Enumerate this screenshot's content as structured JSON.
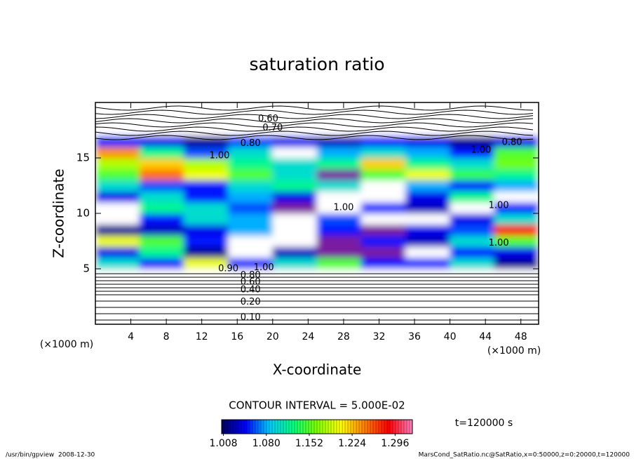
{
  "chart_data": {
    "type": "contour",
    "title": "saturation ratio",
    "xlabel": "X-coordinate",
    "ylabel": "Z-coordinate",
    "x_unit": "(×1000 m)",
    "y_unit": "(×1000 m)",
    "xlim": [
      0,
      50
    ],
    "ylim": [
      0,
      20
    ],
    "xticks": [
      4,
      8,
      12,
      16,
      20,
      24,
      28,
      32,
      36,
      40,
      44,
      48
    ],
    "yticks": [
      5,
      10,
      15
    ],
    "field": {
      "x_edges": [
        0,
        5,
        10,
        15,
        20,
        25,
        30,
        35,
        40,
        45,
        50
      ],
      "z_edges": [
        0,
        1,
        2,
        3,
        4,
        5,
        6,
        7,
        8,
        9,
        10,
        11,
        12,
        13,
        14,
        15,
        16,
        17,
        18,
        19,
        20
      ],
      "values": [
        [
          0.12,
          0.12,
          0.12,
          0.12,
          0.12,
          0.12,
          0.12,
          0.12,
          0.12,
          0.12
        ],
        [
          0.22,
          0.22,
          0.22,
          0.22,
          0.22,
          0.22,
          0.22,
          0.22,
          0.22,
          0.22
        ],
        [
          0.35,
          0.35,
          0.35,
          0.35,
          0.35,
          0.35,
          0.35,
          0.35,
          0.35,
          0.35
        ],
        [
          0.5,
          0.5,
          0.5,
          0.5,
          0.5,
          0.5,
          0.5,
          0.5,
          0.5,
          0.5
        ],
        [
          0.75,
          0.75,
          0.75,
          0.75,
          0.75,
          0.75,
          0.75,
          0.75,
          0.75,
          0.75
        ],
        [
          1.1,
          1.05,
          1.2,
          1.05,
          1.1,
          1.15,
          1.05,
          1.05,
          1.1,
          1.02
        ],
        [
          1.04,
          1.12,
          1.02,
          0.98,
          1.03,
          1.35,
          1.35,
          1.0,
          1.05,
          1.04
        ],
        [
          1.2,
          1.15,
          1.05,
          0.95,
          0.98,
          1.35,
          1.05,
          1.03,
          1.1,
          1.15
        ],
        [
          1.02,
          1.03,
          1.04,
          1.08,
          0.95,
          1.05,
          1.35,
          1.04,
          1.06,
          1.28
        ],
        [
          0.98,
          1.05,
          1.1,
          1.08,
          0.96,
          1.06,
          0.98,
          0.97,
          1.04,
          1.1
        ],
        [
          0.97,
          1.12,
          1.1,
          1.06,
          1.35,
          0.97,
          1.05,
          1.03,
          0.98,
          1.05
        ],
        [
          1.04,
          1.1,
          1.05,
          1.08,
          1.04,
          0.98,
          0.97,
          1.04,
          1.12,
          0.98
        ],
        [
          1.1,
          1.06,
          1.05,
          1.1,
          1.12,
          1.1,
          0.98,
          1.08,
          1.05,
          1.08
        ],
        [
          1.15,
          1.25,
          1.2,
          1.15,
          1.1,
          1.35,
          1.15,
          1.2,
          1.14,
          1.12
        ],
        [
          1.18,
          1.22,
          1.18,
          1.12,
          1.1,
          1.12,
          1.22,
          1.12,
          1.1,
          1.16
        ],
        [
          1.24,
          1.12,
          1.06,
          1.1,
          0.98,
          1.08,
          1.1,
          1.08,
          1.05,
          1.15
        ],
        [
          1.05,
          1.04,
          1.02,
          1.06,
          1.04,
          1.03,
          1.05,
          1.04,
          1.02,
          1.04
        ],
        [
          0.85,
          0.82,
          0.85,
          0.8,
          0.82,
          0.85,
          0.83,
          0.82,
          0.86,
          0.85
        ],
        [
          0.7,
          0.72,
          0.7,
          0.68,
          0.7,
          0.72,
          0.7,
          0.7,
          0.72,
          0.7
        ],
        [
          0.6,
          0.62,
          0.6,
          0.6,
          0.62,
          0.6,
          0.6,
          0.62,
          0.6,
          0.6
        ]
      ]
    },
    "colors": [
      "#00005a",
      "#0000ff",
      "#00c8ff",
      "#00ff80",
      "#80ff00",
      "#ffff00",
      "#ff8000",
      "#ff0000",
      "#ff80c0"
    ],
    "under_color": "#ffffff",
    "over_color": "#7a1fa0",
    "clim": [
      1.005,
      1.325
    ],
    "colorbar_ticks": [
      1.008,
      {
        "value": 1.08,
        "label": "1.080"
      },
      1.152,
      1.224,
      1.296
    ],
    "contour_labels": [
      {
        "text": "0.10",
        "x": 17.5,
        "z": 0.6
      },
      {
        "text": "0.20",
        "x": 17.5,
        "z": 2.0
      },
      {
        "text": "0.40",
        "x": 17.5,
        "z": 3.1
      },
      {
        "text": "0.60",
        "x": 17.5,
        "z": 3.8
      },
      {
        "text": "0.80",
        "x": 17.5,
        "z": 4.4
      },
      {
        "text": "0.90",
        "x": 15.0,
        "z": 5.0
      },
      {
        "text": "1.00",
        "x": 19.0,
        "z": 5.1
      },
      {
        "text": "1.00",
        "x": 28.0,
        "z": 10.5
      },
      {
        "text": "1.00",
        "x": 45.5,
        "z": 10.7
      },
      {
        "text": "1.00",
        "x": 45.5,
        "z": 7.3
      },
      {
        "text": "1.00",
        "x": 14.0,
        "z": 15.2
      },
      {
        "text": "0.80",
        "x": 17.5,
        "z": 16.3
      },
      {
        "text": "0.70",
        "x": 20.0,
        "z": 17.7
      },
      {
        "text": "0.60",
        "x": 19.5,
        "z": 18.5
      },
      {
        "text": "1.00",
        "x": 43.5,
        "z": 15.7
      },
      {
        "text": "0.80",
        "x": 47.0,
        "z": 16.4
      }
    ],
    "contour_interval": "CONTOUR INTERVAL = 5.000E-02",
    "time_label": "t=120000 s",
    "footer_left": "/usr/bin/gpview  2008-12-30",
    "footer_right": "MarsCond_SatRatio.nc@SatRatio,x=0:50000,z=0:20000,t=120000"
  }
}
